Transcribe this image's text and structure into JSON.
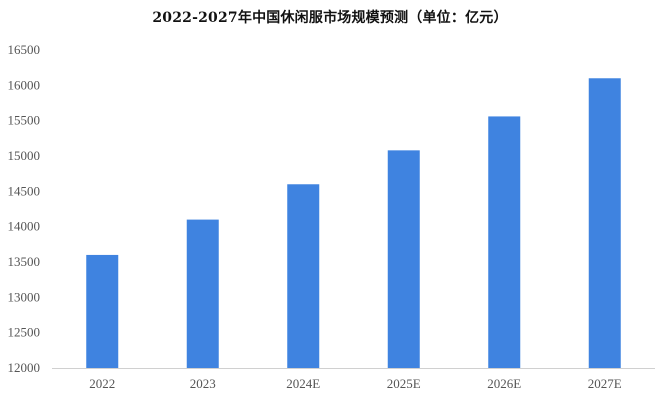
{
  "chart_data": {
    "type": "bar",
    "title": "2022-2027年中国休闲服市场规模预测（单位：亿元）",
    "xlabel": "",
    "ylabel": "",
    "categories": [
      "2022",
      "2023",
      "2024E",
      "2025E",
      "2026E",
      "2027E"
    ],
    "values": [
      13600,
      14100,
      14600,
      15080,
      15560,
      16100
    ],
    "ylim": [
      12000,
      16500
    ],
    "yticks": [
      12000,
      12500,
      13000,
      13500,
      14000,
      14500,
      15000,
      15500,
      16000,
      16500
    ],
    "grid": false,
    "legend": "none",
    "bar_color": "#3f83e0"
  }
}
